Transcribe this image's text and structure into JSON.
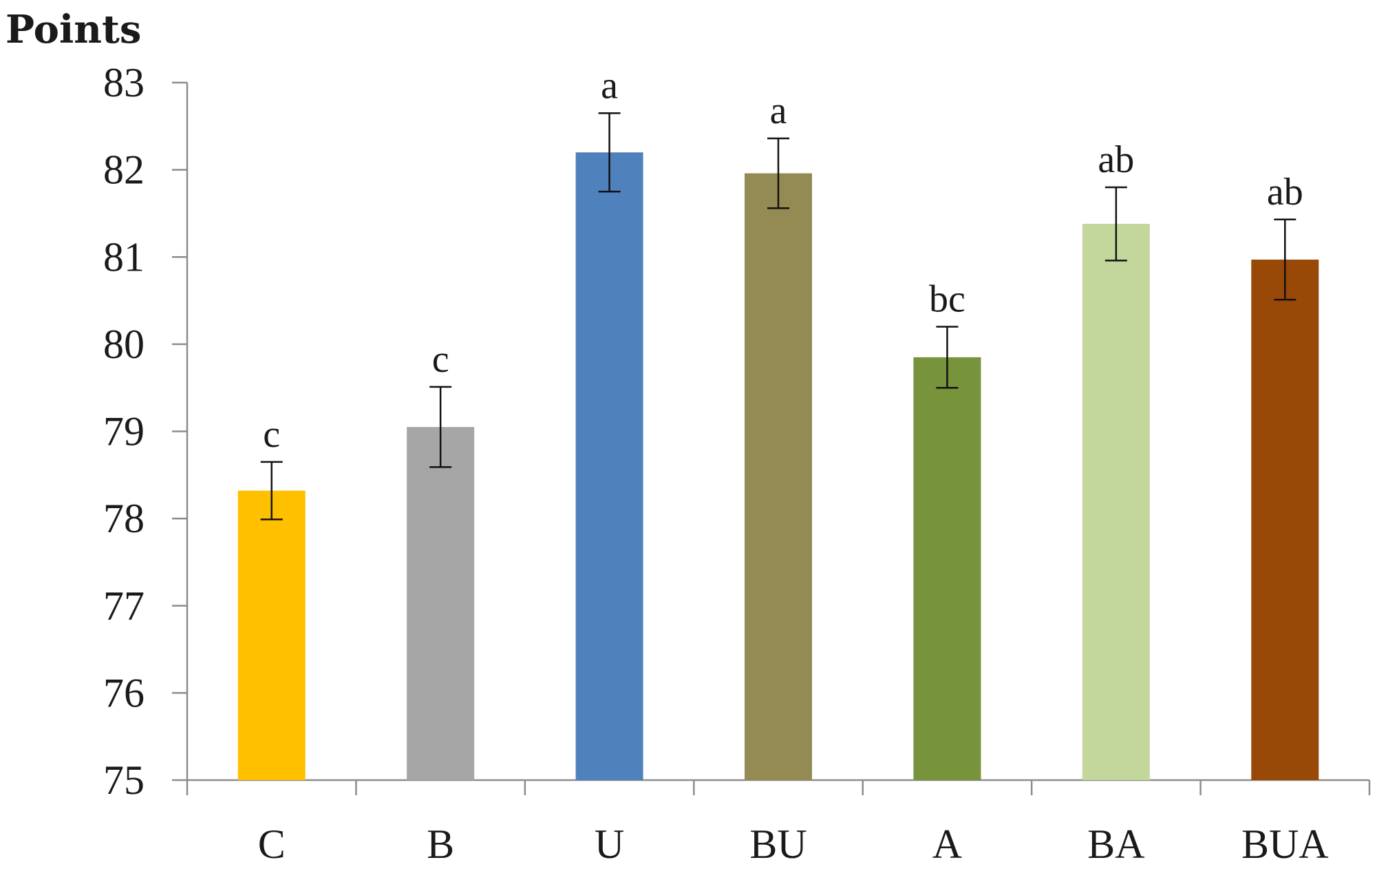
{
  "chart_data": {
    "type": "bar",
    "title": "",
    "xlabel": "",
    "ylabel": "Points",
    "ylim": [
      75,
      83
    ],
    "yticks": [
      75,
      76,
      77,
      78,
      79,
      80,
      81,
      82,
      83
    ],
    "grid": false,
    "legend": "none",
    "categories": [
      "C",
      "B",
      "U",
      "BU",
      "A",
      "BA",
      "BUA"
    ],
    "values": [
      78.32,
      79.05,
      82.2,
      81.96,
      79.85,
      81.38,
      80.97
    ],
    "errors": [
      0.33,
      0.46,
      0.45,
      0.4,
      0.35,
      0.42,
      0.46
    ],
    "significance": [
      "c",
      "c",
      "a",
      "a",
      "bc",
      "ab",
      "ab"
    ],
    "colors": [
      "#ffc000",
      "#a6a6a6",
      "#4f81bd",
      "#948a54",
      "#77933c",
      "#c3d69b",
      "#984807"
    ]
  }
}
